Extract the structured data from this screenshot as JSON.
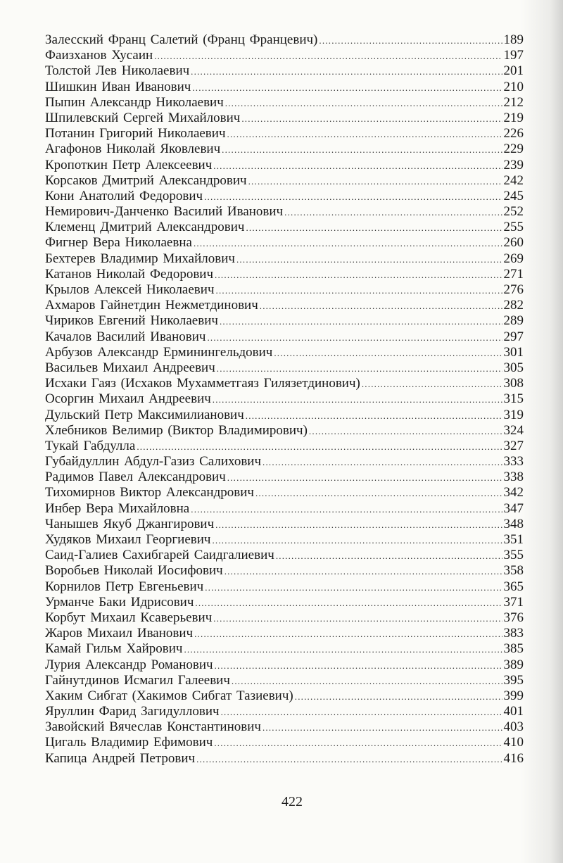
{
  "entries": [
    {
      "name": "Залесский Франц Салетий (Франц Францевич)",
      "page": "189"
    },
    {
      "name": "Фаизханов Хусаин",
      "page": "197"
    },
    {
      "name": "Толстой Лев Николаевич",
      "page": "201"
    },
    {
      "name": "Шишкин Иван Иванович",
      "page": "210"
    },
    {
      "name": "Пыпин Александр Николаевич",
      "page": "212"
    },
    {
      "name": "Шпилевский Сергей Михайлович",
      "page": "219"
    },
    {
      "name": "Потанин Григорий Николаевич",
      "page": "226"
    },
    {
      "name": "Агафонов Николай Яковлевич",
      "page": "229"
    },
    {
      "name": "Кропоткин Петр Алексеевич",
      "page": "239"
    },
    {
      "name": "Корсаков Дмитрий Александрович",
      "page": "242"
    },
    {
      "name": "Кони Анатолий Федорович",
      "page": "245"
    },
    {
      "name": "Немирович-Данченко Василий Иванович",
      "page": "252"
    },
    {
      "name": "Клеменц Дмитрий Александрович",
      "page": "255"
    },
    {
      "name": "Фигнер Вера Николаевна",
      "page": "260"
    },
    {
      "name": "Бехтерев Владимир Михайлович",
      "page": "269"
    },
    {
      "name": "Катанов Николай Федорович",
      "page": "271"
    },
    {
      "name": "Крылов Алексей Николаевич",
      "page": "276"
    },
    {
      "name": "Ахмаров Гайнетдин Нежметдинович",
      "page": "282"
    },
    {
      "name": "Чириков Евгений Николаевич",
      "page": "289"
    },
    {
      "name": "Качалов Василий Иванович",
      "page": "297"
    },
    {
      "name": "Арбузов Александр Ерминингельдович",
      "page": "301"
    },
    {
      "name": "Васильев Михаил Андреевич",
      "page": "305"
    },
    {
      "name": "Исхаки Гаяз (Исхаков Мухамметгаяз Гилязетдинович)",
      "page": "308"
    },
    {
      "name": "Осоргин Михаил Андреевич",
      "page": "315"
    },
    {
      "name": "Дульский Петр Максимилианович",
      "page": "319"
    },
    {
      "name": "Хлебников Велимир (Виктор Владимирович)",
      "page": "324"
    },
    {
      "name": "Тукай Габдулла",
      "page": "327"
    },
    {
      "name": "Губайдуллин Абдул-Газиз Салихович",
      "page": "333"
    },
    {
      "name": "Радимов Павел Александрович",
      "page": "338"
    },
    {
      "name": "Тихомирнов Виктор Александрович",
      "page": "342"
    },
    {
      "name": "Инбер Вера Михайловна",
      "page": "347"
    },
    {
      "name": "Чанышев Якуб Джангирович",
      "page": "348"
    },
    {
      "name": "Худяков Михаил Георгиевич",
      "page": "351"
    },
    {
      "name": "Саид-Галиев Сахибгарей Саидгалиевич",
      "page": "355"
    },
    {
      "name": "Воробьев Николай Иосифович",
      "page": "358"
    },
    {
      "name": "Корнилов Петр Евгеньевич",
      "page": "365"
    },
    {
      "name": "Урманче Баки Идрисович",
      "page": "371"
    },
    {
      "name": "Корбут Михаил Ксаверьевич",
      "page": "376"
    },
    {
      "name": "Жаров Михаил Иванович",
      "page": "383"
    },
    {
      "name": "Камай Гильм Хайрович",
      "page": "385"
    },
    {
      "name": "Лурия Александр Романович",
      "page": "389"
    },
    {
      "name": "Гайнутдинов Исмагил Галеевич",
      "page": "395"
    },
    {
      "name": "Хаким Сибгат (Хакимов Сибгат Тазиевич)",
      "page": "399"
    },
    {
      "name": "Яруллин Фарид Загидуллович",
      "page": "401"
    },
    {
      "name": "Завойский Вячеслав Константинович",
      "page": "403"
    },
    {
      "name": "Цигаль Владимир Ефимович",
      "page": "410"
    },
    {
      "name": "Капица Андрей Петрович",
      "page": "416"
    }
  ],
  "page_number": "422"
}
